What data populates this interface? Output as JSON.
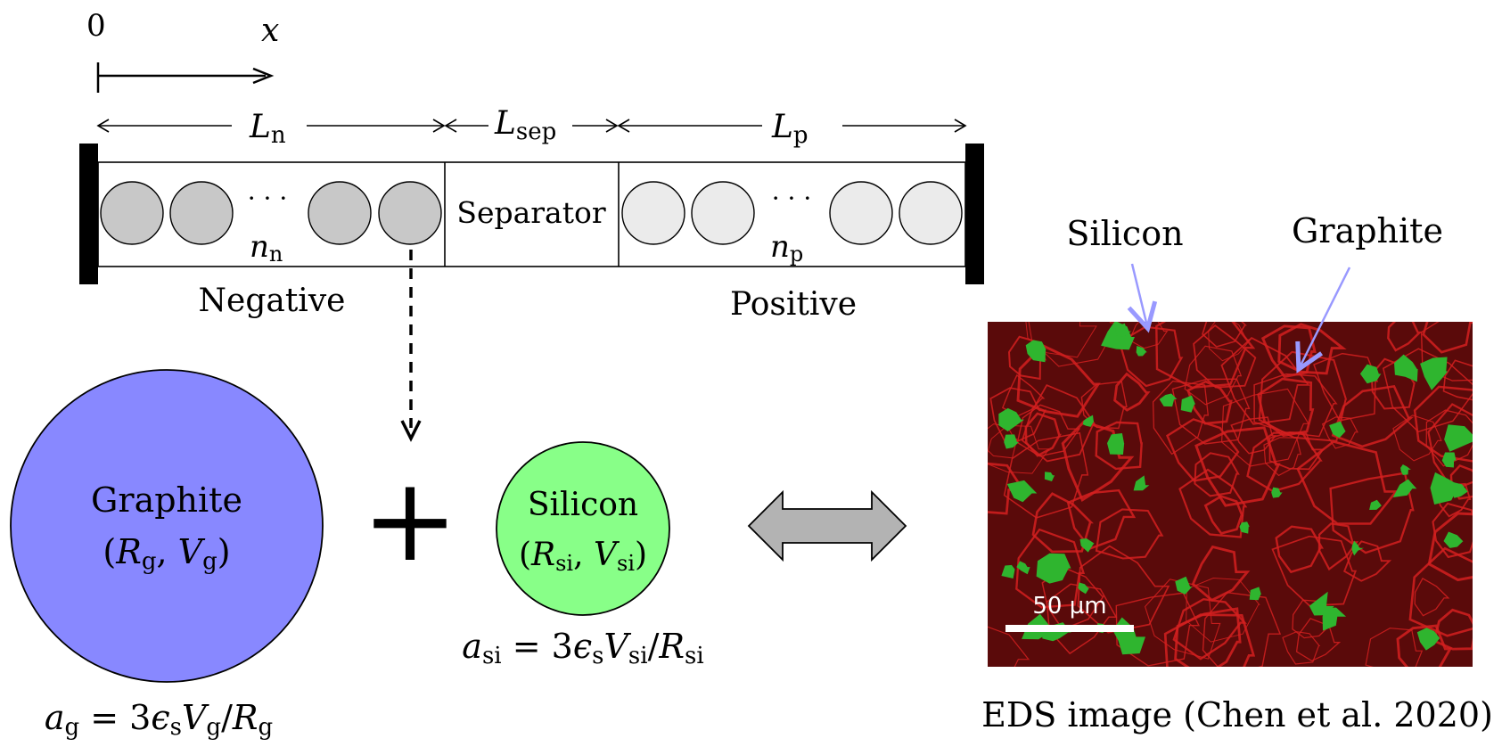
{
  "axis": {
    "origin_label": "0",
    "axis_label": "x"
  },
  "lengths": {
    "negative": {
      "symbol": "L",
      "subscript": "n"
    },
    "separator": {
      "symbol": "L",
      "subscript": "sep"
    },
    "positive": {
      "symbol": "L",
      "subscript": "p"
    }
  },
  "cell": {
    "separator_label": "Separator",
    "negative_label": "Negative",
    "positive_label": "Positive",
    "ellipsis": "· · ·",
    "negative_count": {
      "symbol": "n",
      "subscript": "n"
    },
    "positive_count": {
      "symbol": "n",
      "subscript": "p"
    }
  },
  "particles": {
    "graphite": {
      "name": "Graphite",
      "params": {
        "open": "(",
        "r": "R",
        "r_sub": "g",
        "comma": ", ",
        "v": "V",
        "v_sub": "g",
        "close": ")"
      },
      "formula": {
        "a": "a",
        "a_sub": "g",
        "eq": " = 3",
        "eps": "ϵ",
        "eps_sub": "s",
        "v": "V",
        "v_sub": "g",
        "slash": "/",
        "r": "R",
        "r_sub": "g"
      }
    },
    "silicon": {
      "name": "Silicon",
      "params": {
        "open": "(",
        "r": "R",
        "r_sub": "si",
        "comma": ", ",
        "v": "V",
        "v_sub": "si",
        "close": ")"
      },
      "formula": {
        "a": "a",
        "a_sub": "si",
        "eq": " = 3",
        "eps": "ϵ",
        "eps_sub": "s",
        "v": "V",
        "v_sub": "si",
        "slash": "/",
        "r": "R",
        "r_sub": "si"
      }
    },
    "plus": "+"
  },
  "eds": {
    "silicon_label": "Silicon",
    "graphite_label": "Graphite",
    "scale_bar": "50 µm",
    "caption": "EDS image (Chen et al. 2020)"
  },
  "colors": {
    "graphite_fill": "#8888ff",
    "silicon_fill": "#88ff88",
    "neg_particle": "#c8c8c8",
    "pos_particle": "#ebebeb",
    "arrow_gray": "#b3b3b3",
    "pointer": "#9999ff",
    "eds_bg": "#5a0a0a",
    "eds_red": "#d42020",
    "eds_green": "#2fb52f"
  }
}
